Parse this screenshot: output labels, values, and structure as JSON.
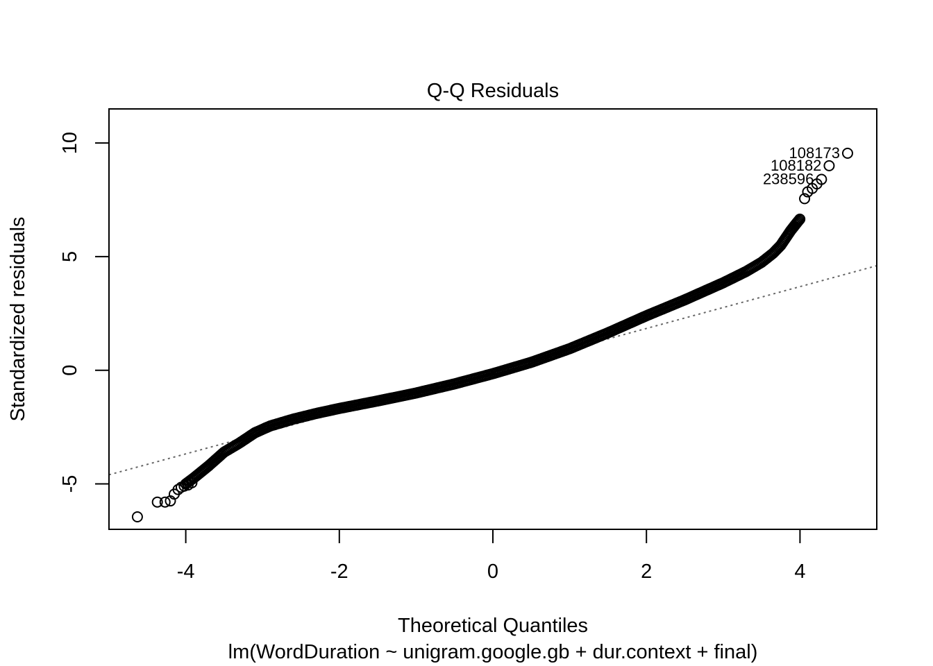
{
  "chart_data": {
    "type": "scatter",
    "title": "Q-Q Residuals",
    "xlabel": "Theoretical Quantiles",
    "subtitle": "lm(WordDuration ~ unigram.google.gb + dur.context + final)",
    "ylabel": "Standardized residuals",
    "xlim": [
      -5.0,
      5.0
    ],
    "ylim": [
      -7.0,
      11.5
    ],
    "x_ticks": [
      {
        "value": -4,
        "label": "-4"
      },
      {
        "value": -2,
        "label": "-2"
      },
      {
        "value": 0,
        "label": "0"
      },
      {
        "value": 2,
        "label": "2"
      },
      {
        "value": 4,
        "label": "4"
      }
    ],
    "y_ticks": [
      {
        "value": -5,
        "label": "-5"
      },
      {
        "value": 0,
        "label": "0"
      },
      {
        "value": 5,
        "label": "5"
      },
      {
        "value": 10,
        "label": "10"
      }
    ],
    "reference_line": {
      "slope": 0.92,
      "intercept": 0.0,
      "style": "dotted",
      "color": "#666666"
    },
    "curve_knots": [
      [
        -4.0,
        -5.0
      ],
      [
        -3.9,
        -4.75
      ],
      [
        -3.7,
        -4.2
      ],
      [
        -3.5,
        -3.6
      ],
      [
        -3.3,
        -3.2
      ],
      [
        -3.1,
        -2.75
      ],
      [
        -2.9,
        -2.45
      ],
      [
        -2.6,
        -2.15
      ],
      [
        -2.3,
        -1.9
      ],
      [
        -2.0,
        -1.68
      ],
      [
        -1.5,
        -1.35
      ],
      [
        -1.0,
        -1.0
      ],
      [
        -0.5,
        -0.6
      ],
      [
        0.0,
        -0.15
      ],
      [
        0.5,
        0.35
      ],
      [
        1.0,
        0.95
      ],
      [
        1.5,
        1.65
      ],
      [
        2.0,
        2.4
      ],
      [
        2.5,
        3.1
      ],
      [
        3.0,
        3.85
      ],
      [
        3.3,
        4.35
      ],
      [
        3.5,
        4.75
      ],
      [
        3.65,
        5.15
      ],
      [
        3.75,
        5.5
      ],
      [
        3.82,
        5.85
      ],
      [
        3.88,
        6.15
      ],
      [
        3.95,
        6.45
      ],
      [
        4.01,
        6.7
      ]
    ],
    "tail_points": [
      [
        -4.63,
        -6.45
      ],
      [
        -4.37,
        -5.8
      ],
      [
        -4.27,
        -5.8
      ],
      [
        -4.2,
        -5.75
      ],
      [
        -4.15,
        -5.45
      ],
      [
        -4.1,
        -5.25
      ],
      [
        -4.06,
        -5.15
      ],
      [
        -4.02,
        -5.1
      ],
      [
        -3.97,
        -5.05
      ],
      [
        -3.92,
        -4.95
      ],
      [
        4.06,
        7.55
      ],
      [
        4.1,
        7.85
      ],
      [
        4.16,
        8.0
      ],
      [
        4.22,
        8.2
      ],
      [
        4.28,
        8.4
      ],
      [
        4.38,
        9.0
      ],
      [
        4.62,
        9.55
      ]
    ],
    "point_labels": [
      {
        "text": "108173",
        "x": 4.62,
        "y": 9.55
      },
      {
        "text": "108182",
        "x": 4.38,
        "y": 9.0
      },
      {
        "text": "238596",
        "x": 4.28,
        "y": 8.4
      }
    ],
    "marker": "open-circle",
    "color": "#000000"
  }
}
